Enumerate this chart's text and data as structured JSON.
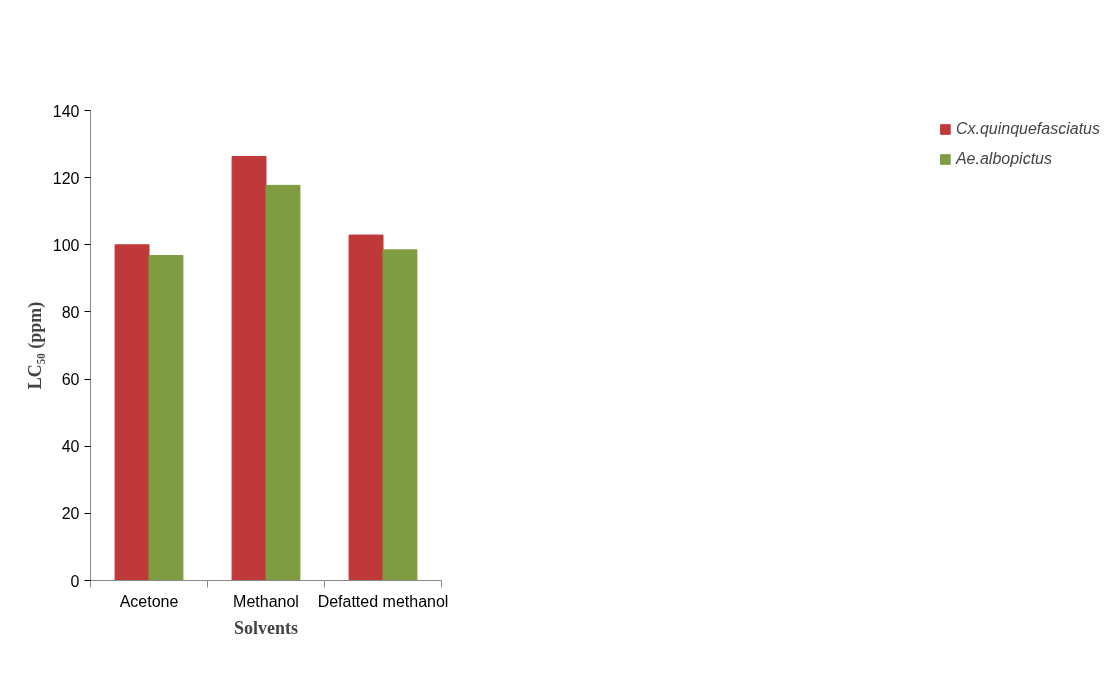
{
  "chart_data": {
    "type": "bar",
    "categories": [
      "Acetone",
      "Methanol",
      "Defatted methanol"
    ],
    "series": [
      {
        "name": "Cx.quinquefasciatus",
        "color": "#c0393a",
        "values": [
          100,
          126.3,
          102.9
        ]
      },
      {
        "name": "Ae.albopictus",
        "color": "#7f9c42",
        "values": [
          96.8,
          117.7,
          98.5
        ]
      }
    ],
    "xlabel": "Solvents",
    "ylabel": "LC₅₀ (ppm)",
    "ylim": [
      0,
      140
    ],
    "yticks": [
      0,
      20,
      40,
      60,
      80,
      100,
      120,
      140
    ],
    "grid": false,
    "legend": "right"
  }
}
